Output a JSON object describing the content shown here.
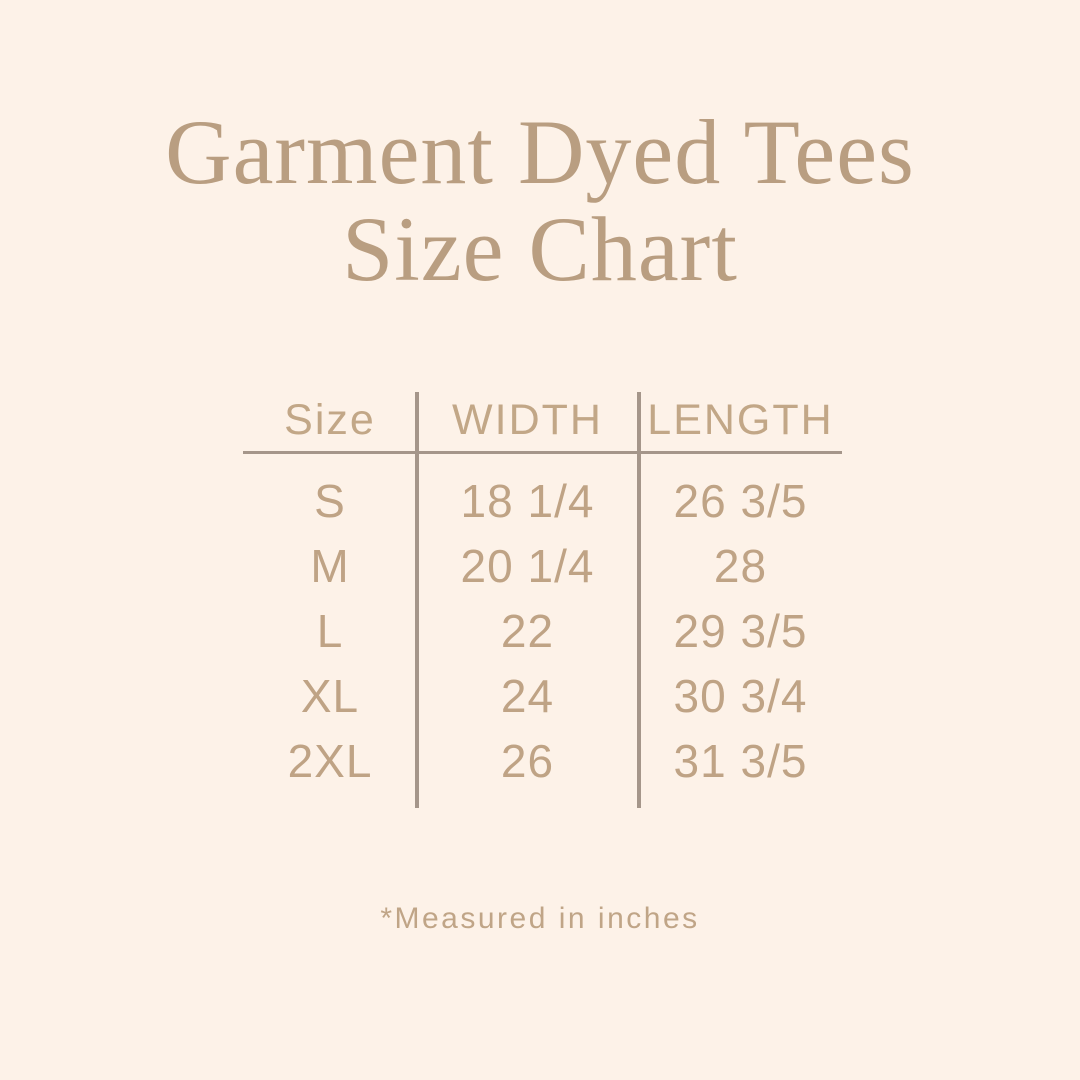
{
  "page": {
    "background_color": "#fdf2e8",
    "title_color": "#b99e81",
    "table_text_color": "#bfa385",
    "divider_color": "#a5968a"
  },
  "title": {
    "line1": "Garment Dyed Tees",
    "line2": "Size Chart"
  },
  "table": {
    "headers": {
      "size": "Size",
      "width": "WIDTH",
      "length": "LENGTH"
    },
    "rows": [
      {
        "size": "S",
        "width": "18 1/4",
        "length": "26 3/5"
      },
      {
        "size": "M",
        "width": "20 1/4",
        "length": "28"
      },
      {
        "size": "L",
        "width": "22",
        "length": "29 3/5"
      },
      {
        "size": "XL",
        "width": "24",
        "length": "30 3/4"
      },
      {
        "size": "2XL",
        "width": "26",
        "length": "31 3/5"
      }
    ]
  },
  "footnote": {
    "text": "*Measured in inches"
  },
  "chart_data": {
    "type": "table",
    "title": "Garment Dyed Tees Size Chart",
    "columns": [
      "Size",
      "WIDTH",
      "LENGTH"
    ],
    "rows": [
      [
        "S",
        "18 1/4",
        "26 3/5"
      ],
      [
        "M",
        "20 1/4",
        "28"
      ],
      [
        "L",
        "22",
        "29 3/5"
      ],
      [
        "XL",
        "24",
        "30 3/4"
      ],
      [
        "2XL",
        "26",
        "31 3/5"
      ]
    ],
    "units_note": "*Measured in inches",
    "layout": {
      "grid": "off",
      "column_dividers": true,
      "header_underline": true
    }
  }
}
